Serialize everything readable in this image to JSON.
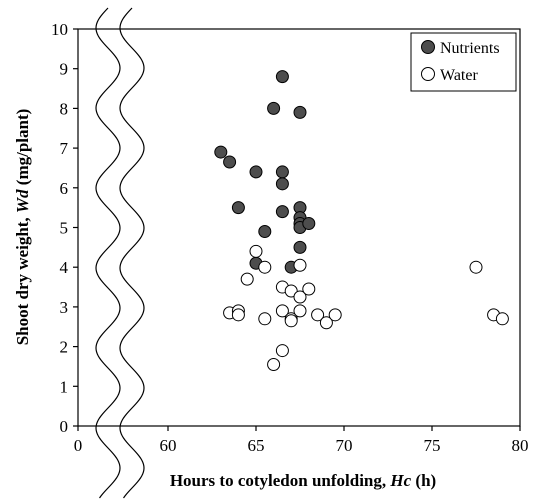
{
  "chart_data": {
    "type": "scatter",
    "x_break": {
      "from": 0,
      "to": 55
    },
    "xlim": [
      0,
      80
    ],
    "ylim": [
      0,
      10
    ],
    "xticks": [
      0,
      60,
      65,
      70,
      75,
      80
    ],
    "yticks": [
      0,
      1,
      2,
      3,
      4,
      5,
      6,
      7,
      8,
      9,
      10
    ],
    "xlabel": {
      "prefix": "Hours to cotyledon unfolding, ",
      "symbol": "Hc",
      "suffix": " (h)"
    },
    "ylabel": {
      "prefix": "Shoot dry weight, ",
      "symbol": "Wd",
      "suffix": " (mg/plant)"
    },
    "grid": false,
    "legend_position": "top-right",
    "series": [
      {
        "name": "Nutrients",
        "marker": "filled-circle",
        "color": "#4d4d4d",
        "points": [
          [
            63.0,
            6.9
          ],
          [
            63.5,
            6.65
          ],
          [
            64.0,
            5.5
          ],
          [
            65.0,
            6.4
          ],
          [
            65.0,
            4.1
          ],
          [
            65.5,
            4.9
          ],
          [
            66.0,
            8.0
          ],
          [
            66.5,
            8.8
          ],
          [
            66.5,
            6.4
          ],
          [
            66.5,
            6.1
          ],
          [
            66.5,
            5.4
          ],
          [
            67.0,
            4.0
          ],
          [
            67.5,
            7.9
          ],
          [
            67.5,
            5.5
          ],
          [
            67.5,
            5.25
          ],
          [
            67.5,
            5.1
          ],
          [
            67.5,
            5.0
          ],
          [
            67.5,
            4.5
          ],
          [
            68.0,
            5.1
          ]
        ]
      },
      {
        "name": "Water",
        "marker": "open-circle",
        "color": "#ffffff",
        "points": [
          [
            63.5,
            2.85
          ],
          [
            64.0,
            2.9
          ],
          [
            64.0,
            2.8
          ],
          [
            64.5,
            3.7
          ],
          [
            65.0,
            4.4
          ],
          [
            65.5,
            4.0
          ],
          [
            65.5,
            2.7
          ],
          [
            66.0,
            1.55
          ],
          [
            66.5,
            3.5
          ],
          [
            66.5,
            2.9
          ],
          [
            66.5,
            1.9
          ],
          [
            67.0,
            3.4
          ],
          [
            67.0,
            2.7
          ],
          [
            67.0,
            2.65
          ],
          [
            67.5,
            4.05
          ],
          [
            67.5,
            3.25
          ],
          [
            67.5,
            2.9
          ],
          [
            68.0,
            3.45
          ],
          [
            68.5,
            2.8
          ],
          [
            69.0,
            2.6
          ],
          [
            69.5,
            2.8
          ],
          [
            77.5,
            4.0
          ],
          [
            78.5,
            2.8
          ],
          [
            79.0,
            2.7
          ]
        ]
      }
    ]
  }
}
